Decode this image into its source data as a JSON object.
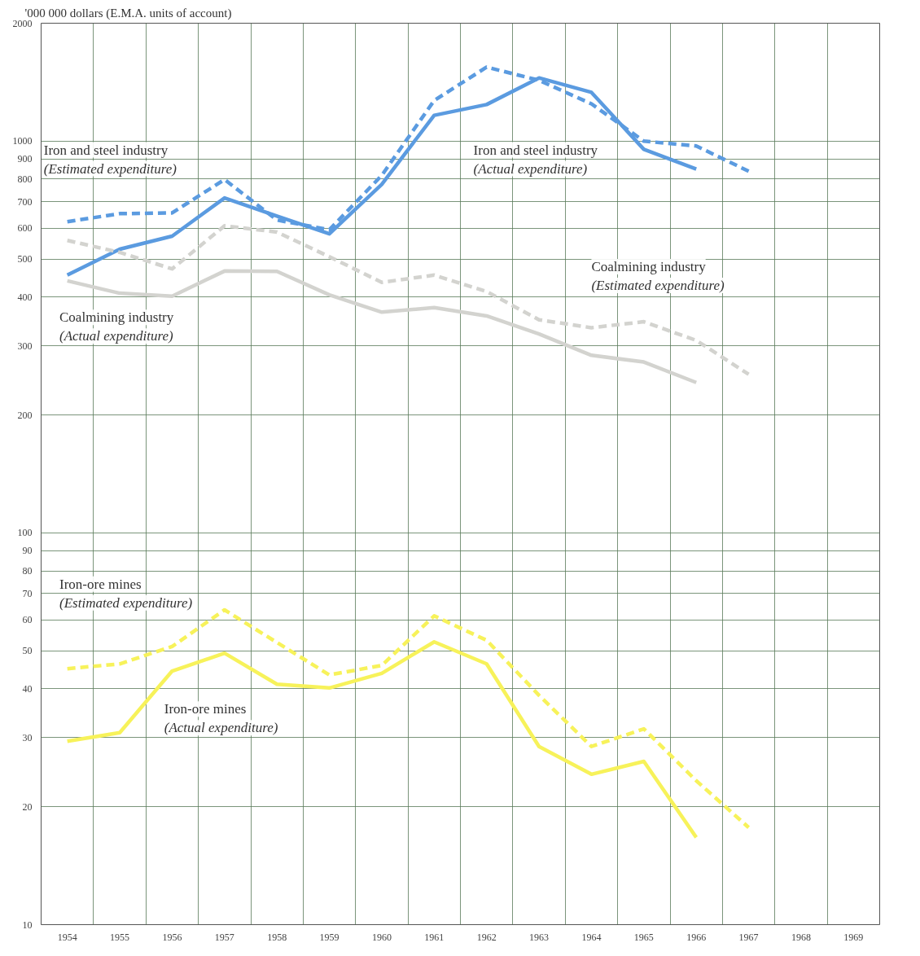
{
  "chart_data": {
    "type": "line",
    "ylabel": "'000 000 dollars (E.M.A. units of account)",
    "x": [
      1954,
      1955,
      1956,
      1957,
      1958,
      1959,
      1960,
      1961,
      1962,
      1963,
      1964,
      1965,
      1966,
      1967
    ],
    "xlim": [
      1953.5,
      1969.5
    ],
    "xticks": [
      1954,
      1955,
      1956,
      1957,
      1958,
      1959,
      1960,
      1961,
      1962,
      1963,
      1964,
      1965,
      1966,
      1967,
      1968,
      1969
    ],
    "ylim": [
      10,
      2000
    ],
    "yticks": [
      10,
      20,
      30,
      40,
      50,
      60,
      70,
      80,
      90,
      100,
      200,
      300,
      400,
      500,
      600,
      700,
      800,
      900,
      1000,
      2000
    ],
    "log": true,
    "grid": true,
    "marker": "none",
    "series": [
      {
        "name": "Iron and steel industry\n(Estimated expenditure)",
        "color": "#5b9be0",
        "line_style": "dashed",
        "values": [
          623,
          653,
          656,
          798,
          629,
          594,
          818,
          1270,
          1545,
          1430,
          1245,
          1000,
          972,
          838
        ]
      },
      {
        "name": "Iron and steel industry\n(Actual expenditure)",
        "color": "#5b9be0",
        "line_style": "solid",
        "values": [
          455,
          530,
          572,
          716,
          644,
          580,
          776,
          1164,
          1240,
          1450,
          1332,
          953,
          849,
          null
        ]
      },
      {
        "name": "Coalmining industry\n(Estimated expenditure)",
        "color": "#d3d3cf",
        "line_style": "dashed",
        "values": [
          558,
          520,
          472,
          608,
          586,
          507,
          436,
          455,
          413,
          350,
          334,
          346,
          310,
          254
        ]
      },
      {
        "name": "Coalmining industry\n(Actual expenditure)",
        "color": "#d3d3cf",
        "line_style": "solid",
        "values": [
          440,
          409,
          402,
          466,
          465,
          405,
          366,
          376,
          358,
          322,
          284,
          273,
          242,
          null
        ]
      },
      {
        "name": "Iron-ore mines\n(Estimated expenditure)",
        "color": "#f7f25a",
        "line_style": "dashed",
        "values": [
          45,
          46.3,
          51.3,
          63.6,
          52.5,
          43.4,
          45.9,
          61.4,
          53.2,
          38.5,
          28.5,
          31.6,
          23.3,
          17.7
        ]
      },
      {
        "name": "Iron-ore mines\n(Actual expenditure)",
        "color": "#f7f25a",
        "line_style": "solid",
        "values": [
          29.4,
          30.9,
          44.4,
          49.3,
          41.1,
          40.2,
          43.8,
          52.7,
          46.3,
          28.5,
          24.2,
          26.1,
          16.7,
          null
        ]
      }
    ]
  }
}
